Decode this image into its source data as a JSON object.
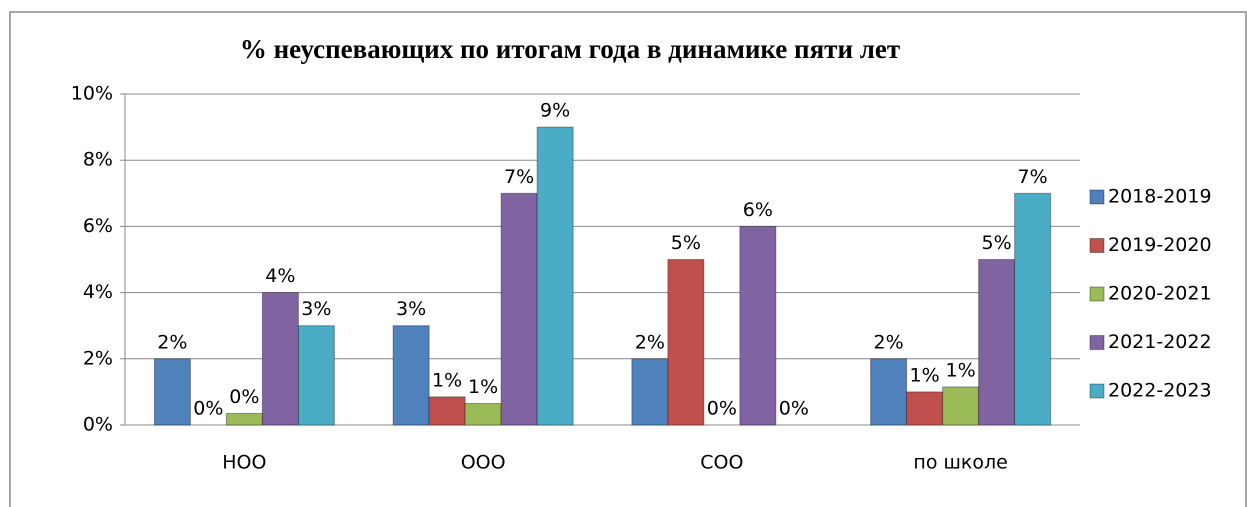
{
  "chart_data": {
    "type": "bar",
    "title": "% неуспевающих по итогам года в динамике пяти  лет",
    "categories": [
      "НОО",
      "ООО",
      "СОО",
      "по школе"
    ],
    "series": [
      {
        "name": "2018-2019",
        "color": "#4f81bd",
        "values": [
          2,
          3,
          2,
          2
        ],
        "value_labels": [
          "2%",
          "3%",
          "2%",
          "2%"
        ]
      },
      {
        "name": "2019-2020",
        "color": "#c0504d",
        "values": [
          0,
          0.85,
          5,
          1
        ],
        "value_labels": [
          "0%",
          "1%",
          "5%",
          "1%"
        ]
      },
      {
        "name": "2020-2021",
        "color": "#9bbb59",
        "values": [
          0.35,
          0.65,
          0,
          1.15
        ],
        "value_labels": [
          "0%",
          "1%",
          "0%",
          "1%"
        ]
      },
      {
        "name": "2021-2022",
        "color": "#8064a2",
        "values": [
          4,
          7,
          6,
          5
        ],
        "value_labels": [
          "4%",
          "7%",
          "6%",
          "5%"
        ]
      },
      {
        "name": "2022-2023",
        "color": "#4bacc6",
        "values": [
          3,
          9,
          0,
          7
        ],
        "value_labels": [
          "3%",
          "9%",
          "0%",
          "7%"
        ]
      }
    ],
    "ylim": [
      0,
      10
    ],
    "yticks": [
      {
        "value": 0,
        "label": "0%"
      },
      {
        "value": 2,
        "label": "2%"
      },
      {
        "value": 4,
        "label": "4%"
      },
      {
        "value": 6,
        "label": "6%"
      },
      {
        "value": 8,
        "label": "8%"
      },
      {
        "value": 10,
        "label": "10%"
      }
    ],
    "grid": true,
    "legend": "right"
  }
}
